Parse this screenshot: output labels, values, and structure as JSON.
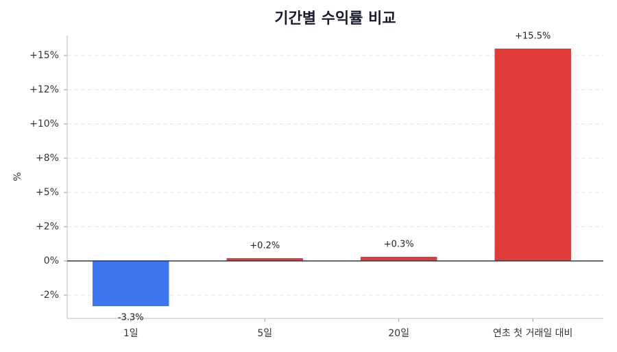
{
  "chart_data": {
    "type": "bar",
    "title": "기간별 수익률 비교",
    "y_label": "%",
    "categories": [
      "1일",
      "5일",
      "20일",
      "연초 첫 거래일 대비"
    ],
    "values": [
      -3.3,
      0.2,
      0.3,
      15.5
    ],
    "value_labels": [
      "-3.3%",
      "+0.2%",
      "+0.3%",
      "+15.5%"
    ],
    "colors": [
      "#3b76f0",
      "#e03a3a",
      "#e03a3a",
      "#e03a3a"
    ],
    "ylim": [
      -4.2,
      16.45
    ],
    "yticks": [
      {
        "value": -2.5,
        "label": "-2%"
      },
      {
        "value": 0,
        "label": "0%"
      },
      {
        "value": 2.5,
        "label": "+2%"
      },
      {
        "value": 5,
        "label": "+5%"
      },
      {
        "value": 7.5,
        "label": "+8%"
      },
      {
        "value": 10,
        "label": "+10%"
      },
      {
        "value": 12.5,
        "label": "+12%"
      },
      {
        "value": 15,
        "label": "+15%"
      }
    ],
    "grid": true
  }
}
